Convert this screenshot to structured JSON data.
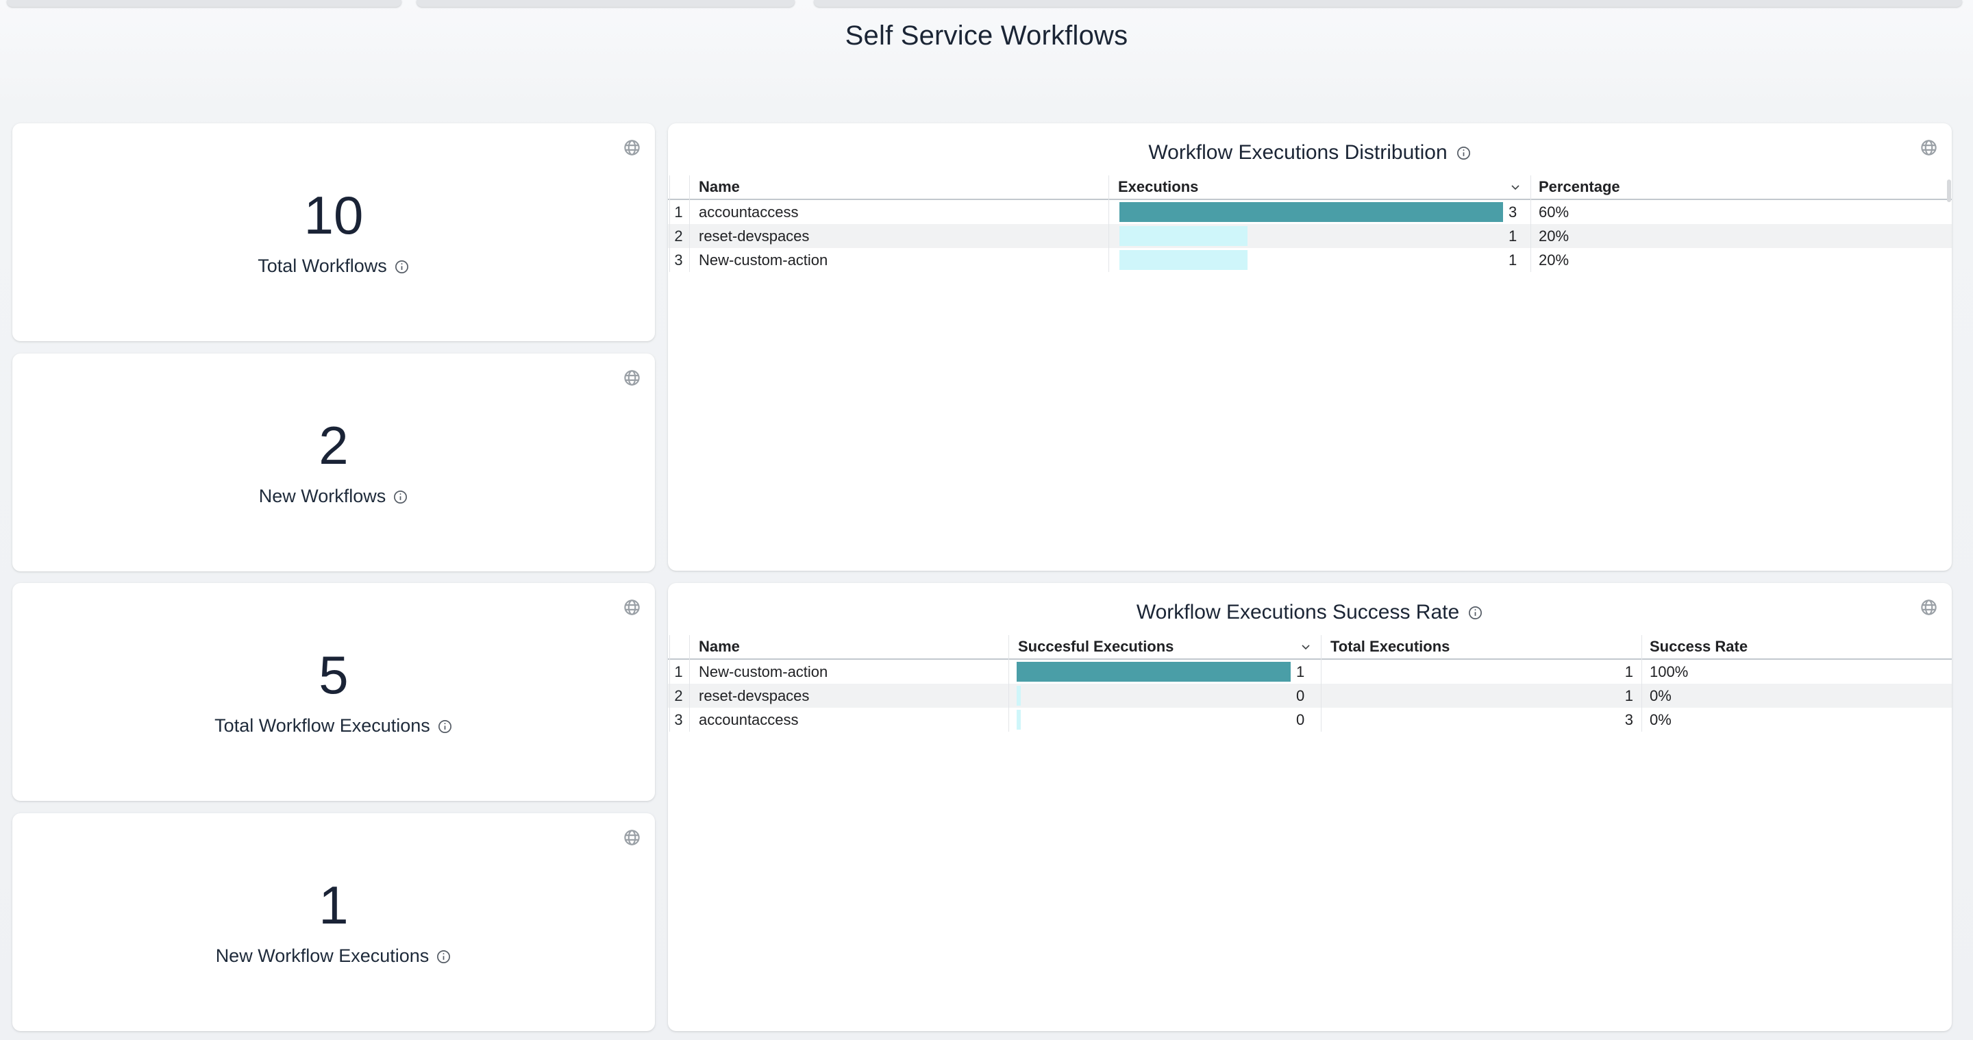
{
  "page": {
    "title": "Self Service Workflows"
  },
  "colors": {
    "bar_primary": "#4a9ea7",
    "bar_secondary": "#cff6fa",
    "dark_text": "#1b2535",
    "stripe": "#f1f2f3"
  },
  "stat_cards": [
    {
      "value": "10",
      "label": "Total Workflows"
    },
    {
      "value": "2",
      "label": "New Workflows"
    },
    {
      "value": "5",
      "label": "Total Workflow Executions"
    },
    {
      "value": "1",
      "label": "New Workflow Executions"
    }
  ],
  "tables": [
    {
      "title": "Workflow Executions Distribution",
      "columns": [
        "Name",
        "Executions",
        "Percentage"
      ],
      "sorted_column": "Executions",
      "rows": [
        {
          "num": "1",
          "name": "accountaccess",
          "executions": 3,
          "percentage": "60%"
        },
        {
          "num": "2",
          "name": "reset-devspaces",
          "executions": 1,
          "percentage": "20%"
        },
        {
          "num": "3",
          "name": "New-custom-action",
          "executions": 1,
          "percentage": "20%"
        }
      ]
    },
    {
      "title": "Workflow Executions Success Rate",
      "columns": [
        "Name",
        "Succesful Executions",
        "Total Executions",
        "Success Rate"
      ],
      "sorted_column": "Succesful Executions",
      "rows": [
        {
          "num": "1",
          "name": "New-custom-action",
          "successful": 1,
          "total": "1",
          "rate": "100%"
        },
        {
          "num": "2",
          "name": "reset-devspaces",
          "successful": 0,
          "total": "1",
          "rate": "0%"
        },
        {
          "num": "3",
          "name": "accountaccess",
          "successful": 0,
          "total": "3",
          "rate": "0%"
        }
      ]
    }
  ],
  "chart_data": [
    {
      "type": "table",
      "title": "Workflow Executions Distribution",
      "categories": [
        "accountaccess",
        "reset-devspaces",
        "New-custom-action"
      ],
      "series": [
        {
          "name": "Executions",
          "values": [
            3,
            1,
            1
          ]
        },
        {
          "name": "Percentage",
          "values": [
            "60%",
            "20%",
            "20%"
          ]
        }
      ]
    },
    {
      "type": "table",
      "title": "Workflow Executions Success Rate",
      "categories": [
        "New-custom-action",
        "reset-devspaces",
        "accountaccess"
      ],
      "series": [
        {
          "name": "Succesful Executions",
          "values": [
            1,
            0,
            0
          ]
        },
        {
          "name": "Total Executions",
          "values": [
            1,
            1,
            3
          ]
        },
        {
          "name": "Success Rate",
          "values": [
            "100%",
            "0%",
            "0%"
          ]
        }
      ]
    }
  ]
}
